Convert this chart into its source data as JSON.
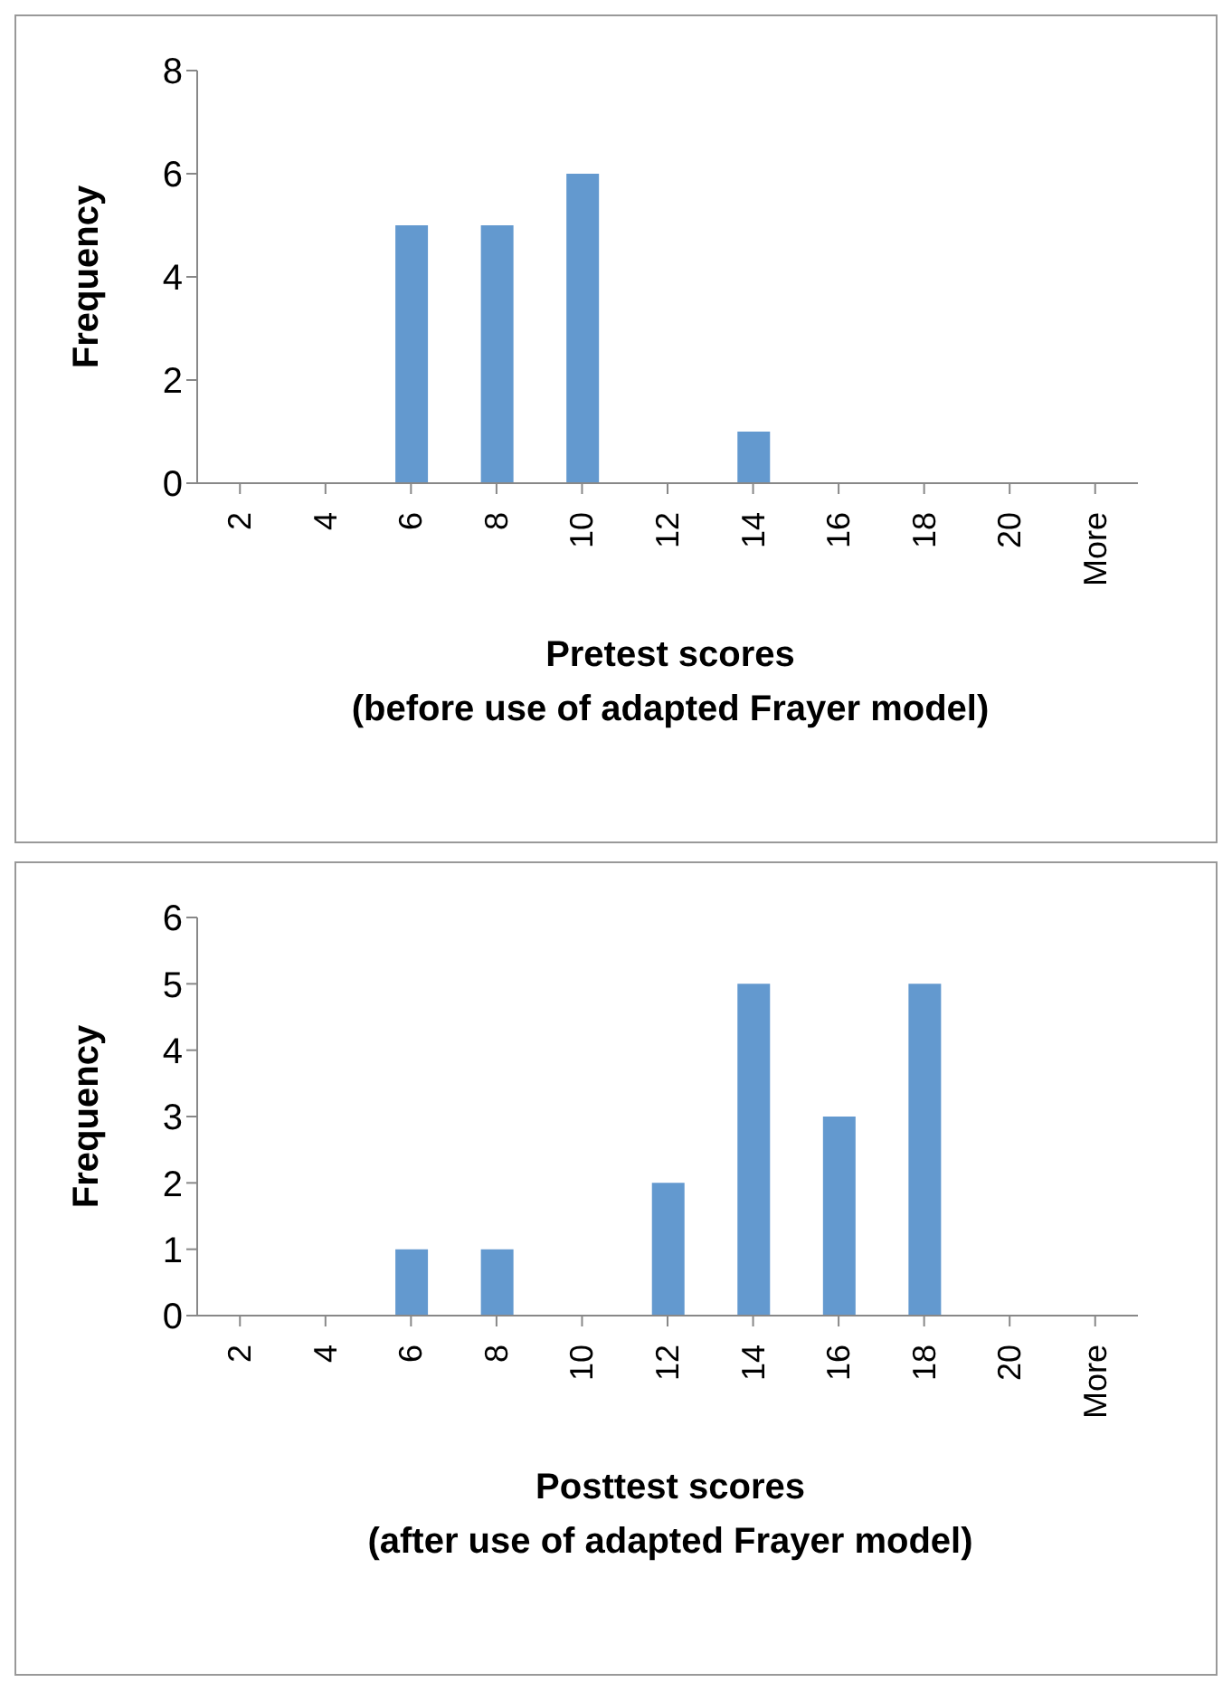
{
  "chart_data": [
    {
      "type": "bar",
      "categories": [
        "2",
        "4",
        "6",
        "8",
        "10",
        "12",
        "14",
        "16",
        "18",
        "20",
        "More"
      ],
      "values": [
        0,
        0,
        5,
        5,
        6,
        0,
        1,
        0,
        0,
        0,
        0
      ],
      "color": "#6399cf",
      "ylabel": "Frequency",
      "xlabel": "Pretest scores\n(before use of adapted Frayer model)",
      "ylim": [
        0,
        8
      ],
      "yticks": [
        0,
        2,
        4,
        6,
        8
      ],
      "grid": false,
      "legend": false
    },
    {
      "type": "bar",
      "categories": [
        "2",
        "4",
        "6",
        "8",
        "10",
        "12",
        "14",
        "16",
        "18",
        "20",
        "More"
      ],
      "values": [
        0,
        0,
        1,
        1,
        0,
        2,
        5,
        3,
        5,
        0,
        0
      ],
      "color": "#6399cf",
      "ylabel": "Frequency",
      "xlabel": "Posttest scores\n(after use of adapted Frayer model)",
      "ylim": [
        0,
        6
      ],
      "yticks": [
        0,
        1,
        2,
        3,
        4,
        5,
        6
      ],
      "grid": false,
      "legend": false
    }
  ]
}
